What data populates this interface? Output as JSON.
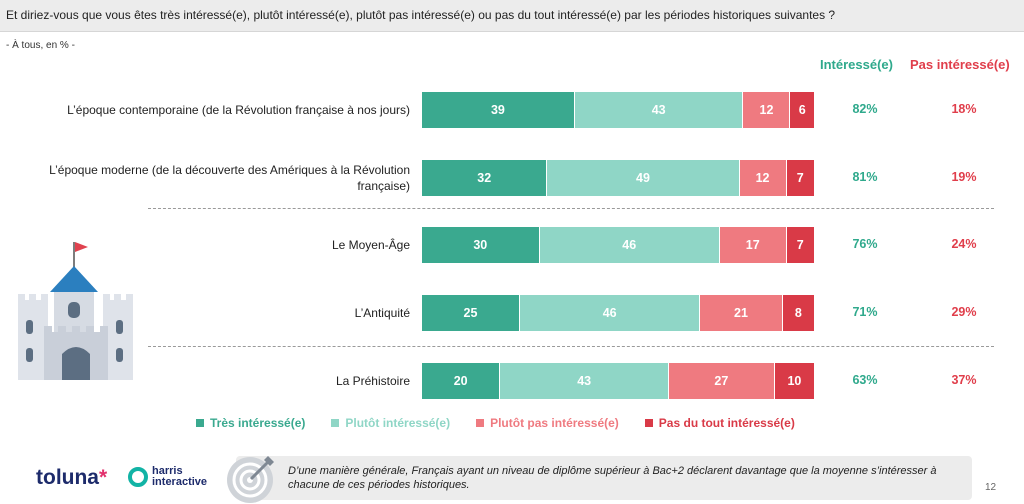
{
  "header": {
    "question": "Et diriez-vous que vous êtes très intéressé(e), plutôt intéressé(e), plutôt pas intéressé(e) ou pas du tout intéressé(e) par les périodes historiques suivantes ?",
    "base": "- À tous, en % -"
  },
  "columns": {
    "interested": "Intéressé(e)",
    "not_interested": "Pas intéressé(e)"
  },
  "colors": {
    "tres": "#3aa98f",
    "plutot": "#8fd6c6",
    "plutot_pas": "#ef7a80",
    "pas_du_tout": "#d93a47",
    "green_text": "#2fa98c",
    "red_text": "#e03e4b"
  },
  "chart_data": {
    "type": "bar",
    "orientation": "horizontal",
    "stacked": true,
    "categories": [
      "L’époque contemporaine (de la Révolution française à nos jours)",
      "L’époque moderne (de la découverte des Amériques à la Révolution française)",
      "Le Moyen-Âge",
      "L’Antiquité",
      "La Préhistoire"
    ],
    "series": [
      {
        "name": "Très intéressé(e)",
        "values": [
          39,
          32,
          30,
          25,
          20
        ]
      },
      {
        "name": "Plutôt intéressé(e)",
        "values": [
          43,
          49,
          46,
          46,
          43
        ]
      },
      {
        "name": "Plutôt pas intéressé(e)",
        "values": [
          12,
          12,
          17,
          21,
          27
        ]
      },
      {
        "name": "Pas du tout intéressé(e)",
        "values": [
          6,
          7,
          7,
          8,
          10
        ]
      }
    ],
    "interested": [
      "82%",
      "81%",
      "76%",
      "71%",
      "63%"
    ],
    "not_interested": [
      "18%",
      "19%",
      "24%",
      "29%",
      "37%"
    ],
    "xlim": [
      0,
      100
    ],
    "legend_position": "bottom"
  },
  "footer": {
    "logo_toluna": "toluna",
    "logo_harris_line1": "harris",
    "logo_harris_line2": "interactive",
    "note": "D’une manière générale, Français ayant un niveau de diplôme supérieur à Bac+2 déclarent davantage que la moyenne s’intéresser à chacune de ces périodes historiques.",
    "page_number": "12"
  }
}
